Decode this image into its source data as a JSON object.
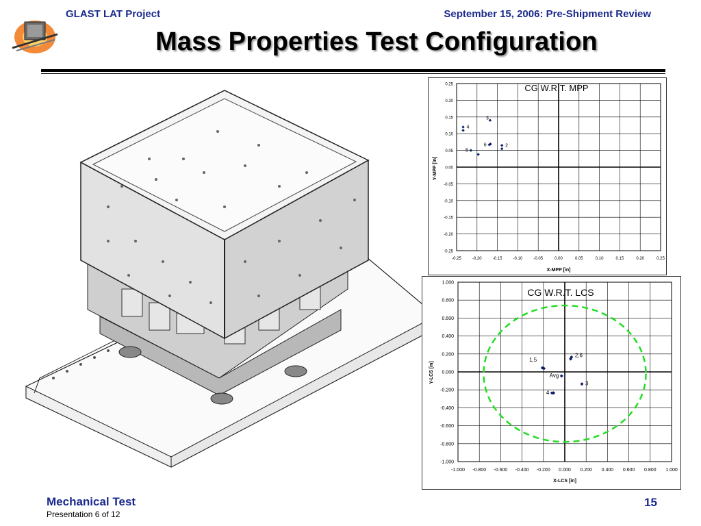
{
  "header": {
    "project": "GLAST LAT Project",
    "review": "September 15, 2006: Pre-Shipment Review"
  },
  "title": "Mass Properties Test Configuration",
  "footer": {
    "section": "Mechanical Test",
    "presentation": "Presentation 6 of 12",
    "page": "15"
  },
  "colors": {
    "header_text": "#1a2a8c",
    "marker": "#0a1e6e",
    "circle": "#22dd22"
  },
  "chart_data": [
    {
      "type": "scatter",
      "title": "CG W.R.T. MPP",
      "xlabel": "X-MPP [in]",
      "ylabel": "Y-MPP [in]",
      "xlim": [
        -0.25,
        0.25
      ],
      "ylim": [
        -0.25,
        0.25
      ],
      "xticks": [
        "-0.25",
        "-0.20",
        "-0.15",
        "-0.10",
        "-0.05",
        "0.00",
        "0.05",
        "0.10",
        "0.15",
        "0.20",
        "0.25"
      ],
      "yticks": [
        "0.25",
        "0.20",
        "0.15",
        "0.10",
        "0.05",
        "0.00",
        "-0.05",
        "-0.10",
        "-0.15",
        "-0.20",
        "-0.25"
      ],
      "grid": true,
      "points": [
        {
          "label": "4",
          "x": -0.234,
          "y": 0.12
        },
        {
          "label": "",
          "x": -0.234,
          "y": 0.11
        },
        {
          "label": "3",
          "x": -0.168,
          "y": 0.14
        },
        {
          "label": "6",
          "x": -0.17,
          "y": 0.067
        },
        {
          "label": "",
          "x": -0.167,
          "y": 0.069
        },
        {
          "label": "2",
          "x": -0.139,
          "y": 0.065
        },
        {
          "label": "",
          "x": -0.139,
          "y": 0.055
        },
        {
          "label": "5",
          "x": -0.215,
          "y": 0.05
        },
        {
          "label": "",
          "x": -0.197,
          "y": 0.038
        }
      ]
    },
    {
      "type": "scatter",
      "title": "CG W.R.T. LCS",
      "xlabel": "X-LCS [in]",
      "ylabel": "Y-LCS [in]",
      "xlim": [
        -1.0,
        1.0
      ],
      "ylim": [
        -1.0,
        1.0
      ],
      "xticks": [
        "-1.000",
        "-0.800",
        "-0.600",
        "-0.400",
        "-0.200",
        "0.000",
        "0.200",
        "0.400",
        "0.600",
        "0.800",
        "1.000"
      ],
      "yticks": [
        "1.000",
        "0.800",
        "0.600",
        "0.400",
        "0.200",
        "0.000",
        "-0.200",
        "-0.400",
        "-0.600",
        "-0.800",
        "-1.000"
      ],
      "grid": true,
      "circle": {
        "cx": 0.0,
        "cy": -0.02,
        "r": 0.76
      },
      "points": [
        {
          "label": "2,6",
          "x": 0.063,
          "y": 0.165
        },
        {
          "label": "",
          "x": 0.055,
          "y": 0.145
        },
        {
          "label": "1,5",
          "x": -0.21,
          "y": 0.045
        },
        {
          "label": "",
          "x": -0.195,
          "y": 0.038
        },
        {
          "label": "Avg",
          "x": -0.03,
          "y": -0.045
        },
        {
          "label": "3",
          "x": 0.16,
          "y": -0.135
        },
        {
          "label": "4",
          "x": -0.12,
          "y": -0.235
        },
        {
          "label": "",
          "x": -0.105,
          "y": -0.235
        }
      ]
    }
  ]
}
